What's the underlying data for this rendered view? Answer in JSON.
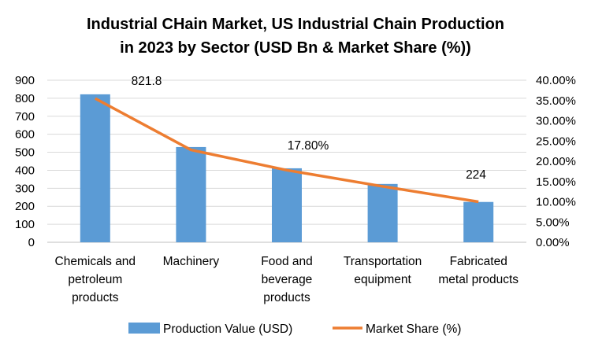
{
  "chart_data": {
    "type": "bar+line",
    "title_line1": "Industrial CHain Market, US Industrial Chain Production",
    "title_line2": "in 2023  by Sector (USD Bn & Market Share (%))",
    "categories": [
      [
        "Chemicals and",
        "petroleum",
        "products"
      ],
      [
        "Machinery"
      ],
      [
        "Food and",
        "beverage",
        "products"
      ],
      [
        "Transportation",
        "equipment"
      ],
      [
        "Fabricated",
        "metal products"
      ]
    ],
    "series": [
      {
        "name": "Production Value (USD)",
        "type": "bar",
        "axis": "left",
        "color": "#5B9BD5",
        "values": [
          821.8,
          529,
          411,
          324,
          224
        ]
      },
      {
        "name": "Market Share (%)",
        "type": "line",
        "axis": "right",
        "color": "#ED7D31",
        "values": [
          35.5,
          22.8,
          17.8,
          13.8,
          10.0
        ]
      }
    ],
    "data_labels": [
      {
        "text": "821.8",
        "category": 0
      },
      {
        "text": "17.80%",
        "category": 2
      },
      {
        "text": "224",
        "category": 4
      }
    ],
    "left_axis": {
      "ylim": [
        0,
        900
      ],
      "ticks": [
        "0",
        "100",
        "200",
        "300",
        "400",
        "500",
        "600",
        "700",
        "800",
        "900"
      ]
    },
    "right_axis": {
      "ylim": [
        0,
        40
      ],
      "ticks": [
        "0.00%",
        "5.00%",
        "10.00%",
        "15.00%",
        "20.00%",
        "25.00%",
        "30.00%",
        "35.00%",
        "40.00%"
      ]
    },
    "grid": true,
    "legend": "bottom"
  }
}
